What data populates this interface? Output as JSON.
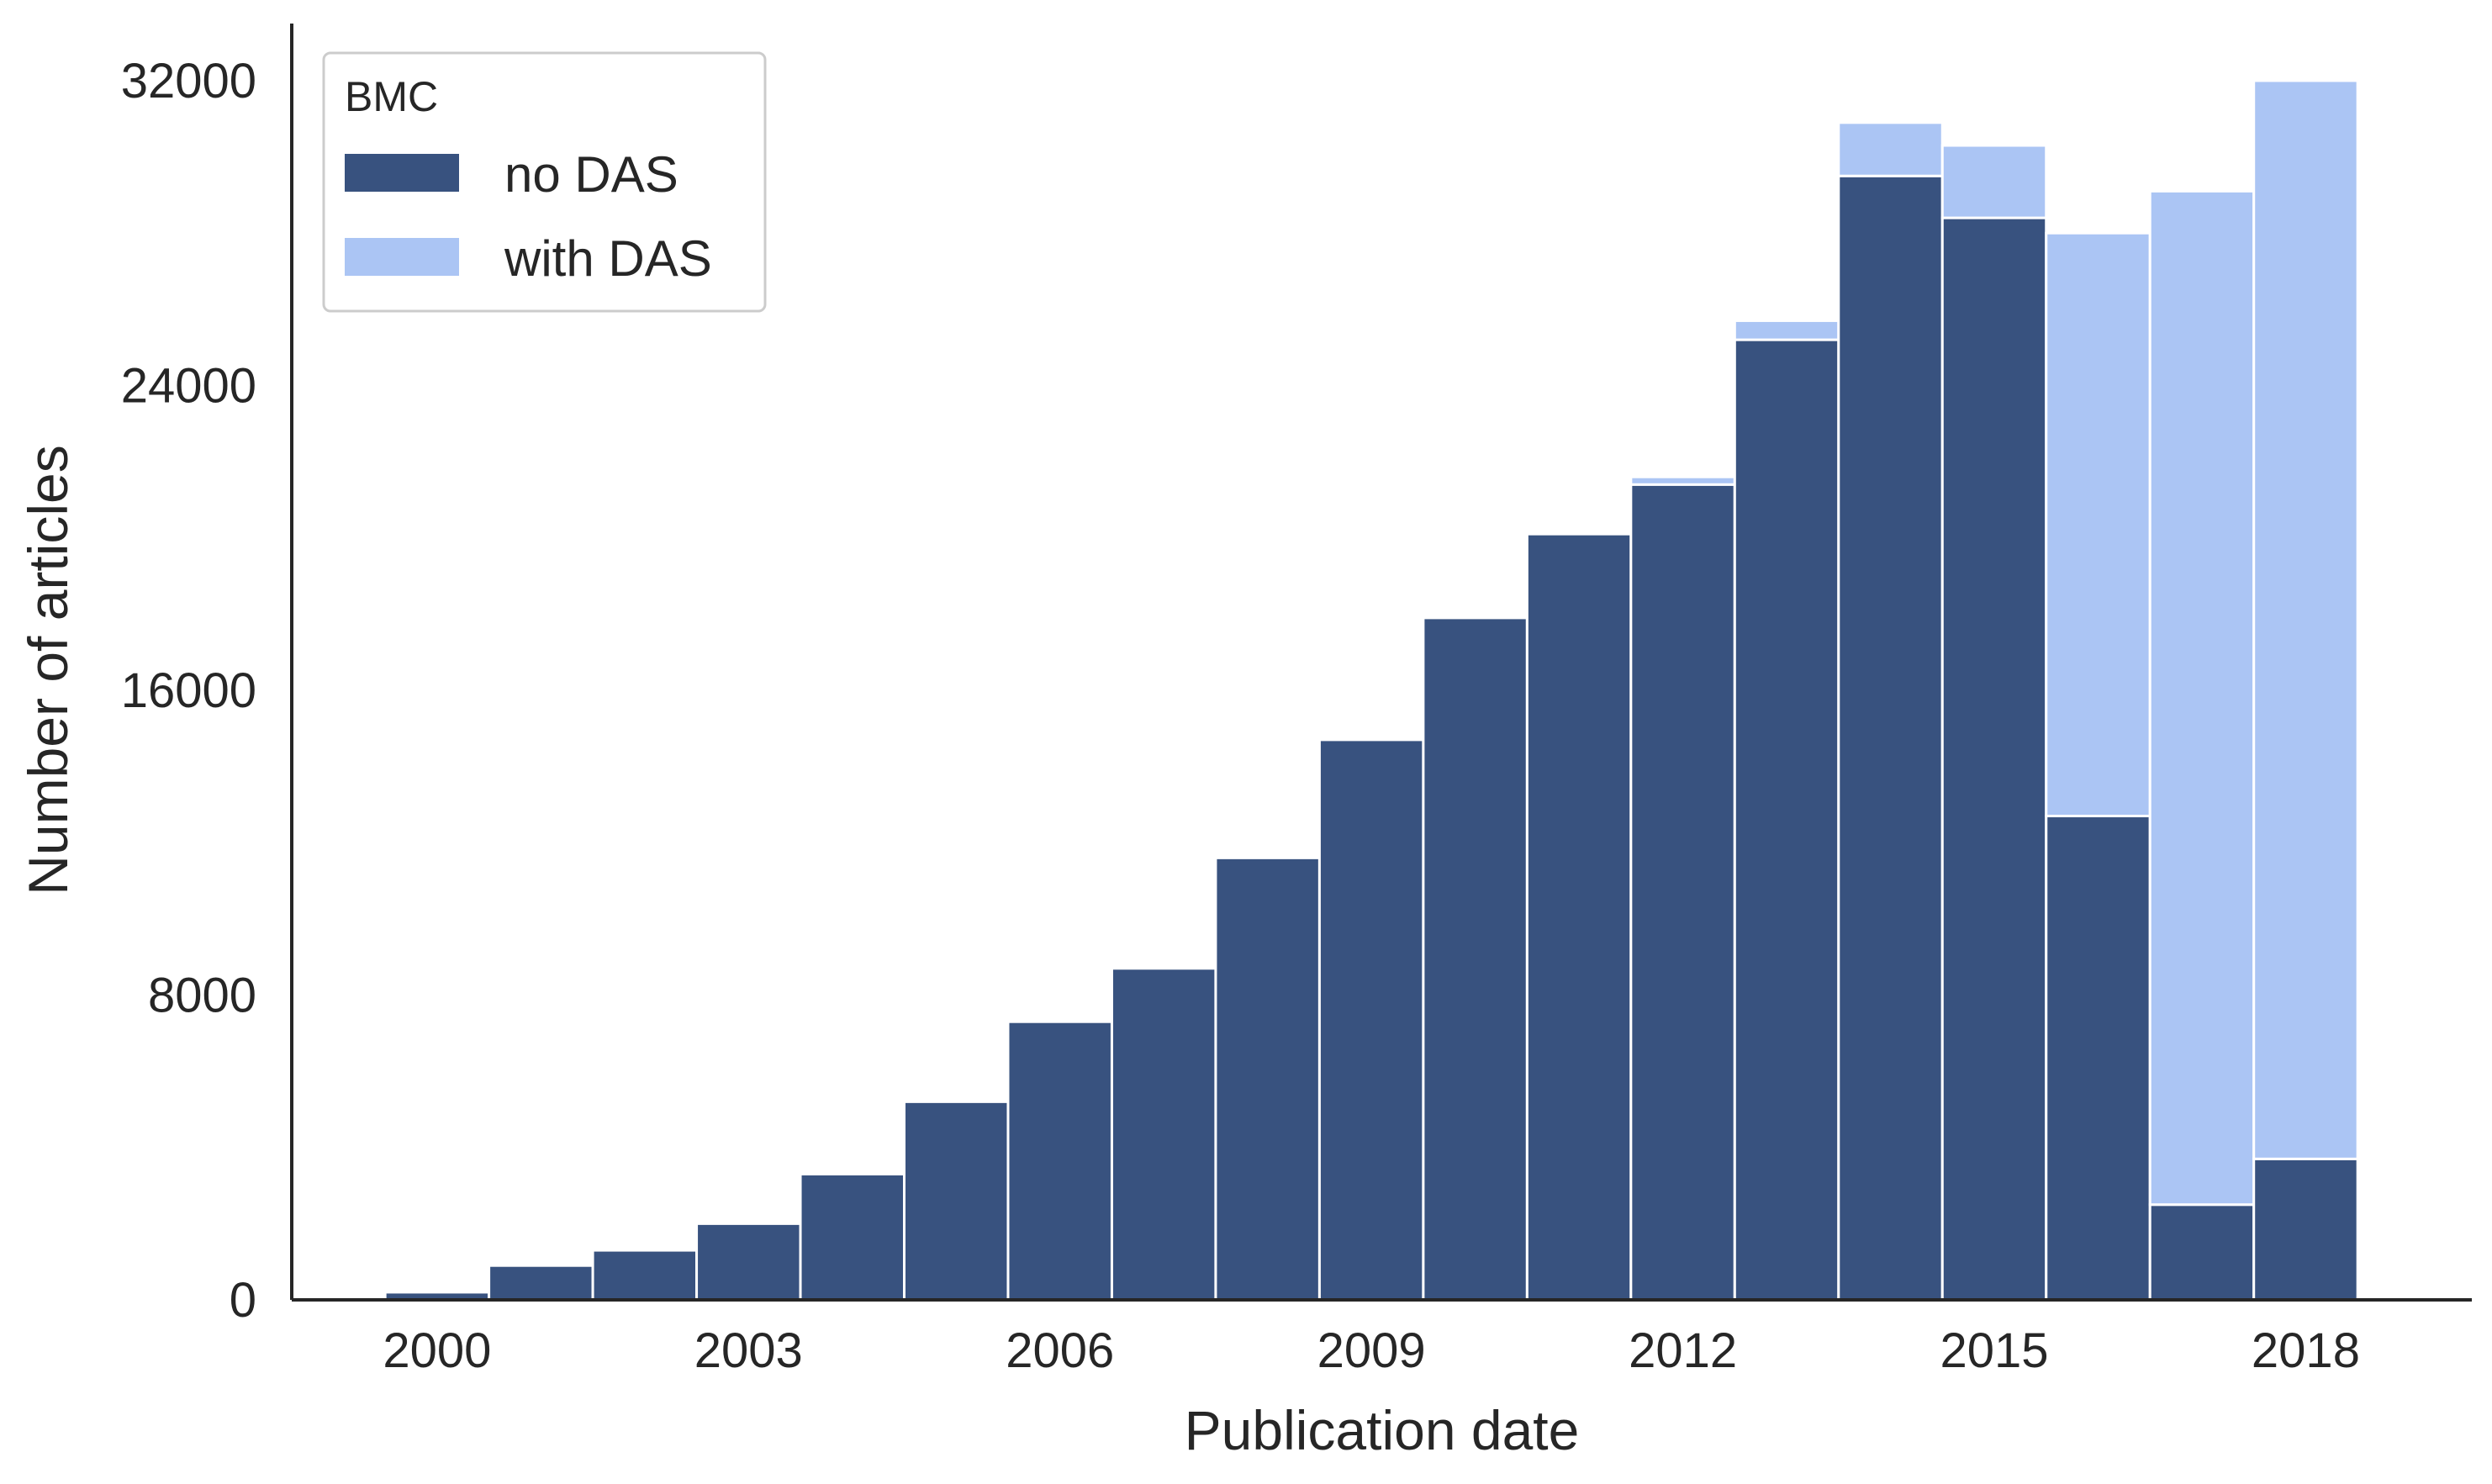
{
  "chart_data": {
    "type": "bar",
    "stacked": true,
    "title": "",
    "xlabel": "Publication date",
    "ylabel": "Number of articles",
    "x": [
      2000,
      2001,
      2002,
      2003,
      2004,
      2005,
      2006,
      2007,
      2008,
      2009,
      2010,
      2011,
      2012,
      2013,
      2014,
      2015,
      2016,
      2017,
      2018
    ],
    "x_ticks": [
      2000,
      2003,
      2006,
      2009,
      2012,
      2015,
      2018
    ],
    "x_tick_labels": [
      "2000",
      "2003",
      "2006",
      "2009",
      "2012",
      "2015",
      "2018"
    ],
    "y_ticks": [
      0,
      8000,
      16000,
      24000,
      32000
    ],
    "y_tick_labels": [
      "0",
      "8000",
      "16000",
      "24000",
      "32000"
    ],
    "ylim": [
      0,
      33500
    ],
    "xlim": [
      1998.6,
      2019.6
    ],
    "series": [
      {
        "name": "no DAS",
        "color": "#38527f",
        "values": [
          200,
          900,
          1300,
          2000,
          3300,
          5200,
          7300,
          8700,
          11600,
          14700,
          17900,
          20100,
          21400,
          25200,
          29500,
          28400,
          12700,
          2500,
          3700
        ]
      },
      {
        "name": "with DAS",
        "color": "#abc5f4",
        "values": [
          0,
          0,
          0,
          0,
          0,
          0,
          0,
          0,
          0,
          0,
          0,
          0,
          200,
          500,
          1400,
          1900,
          15300,
          26600,
          28300
        ]
      }
    ],
    "legend": {
      "title": "BMC",
      "position": "top-left"
    },
    "grid": false,
    "colors": {
      "axis": "#262626",
      "text": "#262626",
      "bar_edge": "#ffffff"
    }
  }
}
